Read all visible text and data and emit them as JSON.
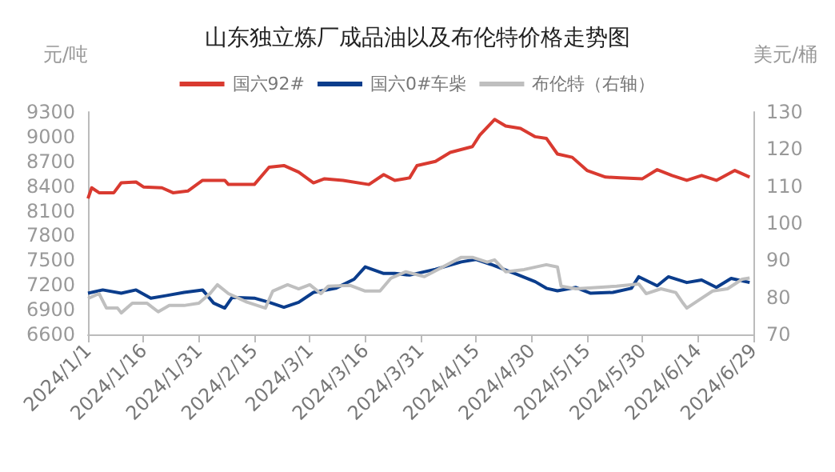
{
  "chart_data": {
    "type": "line",
    "title": "山东独立炼厂成品油以及布伦特价格走势图",
    "ylabel": "元/吨",
    "y2label": "美元/桶",
    "legend": "top",
    "grid": false,
    "marker": "none",
    "line_style": "solid",
    "xlim": [
      "2024-01-01",
      "2024-06-29"
    ],
    "xticks": [
      {
        "value": "2024-01-01",
        "label": "2024/1/1"
      },
      {
        "value": "2024-01-16",
        "label": "2024/1/16"
      },
      {
        "value": "2024-01-31",
        "label": "2024/1/31"
      },
      {
        "value": "2024-02-15",
        "label": "2024/2/15"
      },
      {
        "value": "2024-03-01",
        "label": "2024/3/1"
      },
      {
        "value": "2024-03-16",
        "label": "2024/3/16"
      },
      {
        "value": "2024-03-31",
        "label": "2024/3/31"
      },
      {
        "value": "2024-04-15",
        "label": "2024/4/15"
      },
      {
        "value": "2024-04-30",
        "label": "2024/4/30"
      },
      {
        "value": "2024-05-15",
        "label": "2024/5/15"
      },
      {
        "value": "2024-05-30",
        "label": "2024/5/30"
      },
      {
        "value": "2024-06-14",
        "label": "2024/6/14"
      },
      {
        "value": "2024-06-29",
        "label": "2024/6/29"
      }
    ],
    "ylim": [
      6600,
      9300
    ],
    "yticks": [
      6600,
      6900,
      7200,
      7500,
      7800,
      8100,
      8400,
      8700,
      9000,
      9300
    ],
    "y2lim": [
      70,
      130
    ],
    "y2ticks": [
      70,
      80,
      90,
      100,
      110,
      120,
      130
    ],
    "series": [
      {
        "name": "国六92#",
        "color": "#d93a30",
        "x": [
          "2024-01-01",
          "2024-01-02",
          "2024-01-04",
          "2024-01-08",
          "2024-01-10",
          "2024-01-14",
          "2024-01-16",
          "2024-01-21",
          "2024-01-24",
          "2024-01-28",
          "2024-02-01",
          "2024-02-07",
          "2024-02-08",
          "2024-02-15",
          "2024-02-19",
          "2024-02-23",
          "2024-02-27",
          "2024-03-02",
          "2024-03-05",
          "2024-03-10",
          "2024-03-17",
          "2024-03-21",
          "2024-03-24",
          "2024-03-28",
          "2024-03-30",
          "2024-04-04",
          "2024-04-08",
          "2024-04-14",
          "2024-04-16",
          "2024-04-20",
          "2024-04-23",
          "2024-04-27",
          "2024-05-01",
          "2024-05-04",
          "2024-05-07",
          "2024-05-11",
          "2024-05-15",
          "2024-05-20",
          "2024-05-24",
          "2024-05-30",
          "2024-06-03",
          "2024-06-07",
          "2024-06-11",
          "2024-06-15",
          "2024-06-19",
          "2024-06-24",
          "2024-06-28"
        ],
        "values": [
          8250,
          8380,
          8320,
          8320,
          8440,
          8450,
          8390,
          8380,
          8320,
          8340,
          8470,
          8470,
          8420,
          8420,
          8630,
          8650,
          8570,
          8440,
          8490,
          8470,
          8420,
          8540,
          8470,
          8500,
          8650,
          8700,
          8810,
          8880,
          9020,
          9210,
          9130,
          9100,
          9000,
          8980,
          8790,
          8750,
          8590,
          8510,
          8500,
          8490,
          8600,
          8530,
          8470,
          8530,
          8470,
          8590,
          8510
        ]
      },
      {
        "name": "国六0#车柴",
        "color": "#0b3d8c",
        "x": [
          "2024-01-01",
          "2024-01-05",
          "2024-01-10",
          "2024-01-14",
          "2024-01-18",
          "2024-01-22",
          "2024-01-27",
          "2024-02-01",
          "2024-02-04",
          "2024-02-07",
          "2024-02-09",
          "2024-02-15",
          "2024-02-19",
          "2024-02-23",
          "2024-02-27",
          "2024-03-02",
          "2024-03-08",
          "2024-03-13",
          "2024-03-16",
          "2024-03-21",
          "2024-03-24",
          "2024-03-28",
          "2024-04-04",
          "2024-04-11",
          "2024-04-15",
          "2024-04-19",
          "2024-04-26",
          "2024-05-01",
          "2024-05-04",
          "2024-05-07",
          "2024-05-12",
          "2024-05-16",
          "2024-05-22",
          "2024-05-27",
          "2024-05-29",
          "2024-06-03",
          "2024-06-06",
          "2024-06-11",
          "2024-06-15",
          "2024-06-19",
          "2024-06-23",
          "2024-06-28"
        ],
        "values": [
          7100,
          7140,
          7100,
          7140,
          7040,
          7070,
          7110,
          7140,
          6980,
          6920,
          7050,
          7040,
          6990,
          6930,
          6990,
          7110,
          7160,
          7270,
          7420,
          7340,
          7340,
          7320,
          7390,
          7480,
          7510,
          7450,
          7330,
          7240,
          7160,
          7130,
          7170,
          7100,
          7110,
          7160,
          7300,
          7190,
          7300,
          7230,
          7260,
          7170,
          7280,
          7230
        ]
      },
      {
        "name": "布伦特（右轴）",
        "color": "#bfbfbf",
        "axis": "y2",
        "x": [
          "2024-01-01",
          "2024-01-04",
          "2024-01-06",
          "2024-01-09",
          "2024-01-10",
          "2024-01-13",
          "2024-01-17",
          "2024-01-20",
          "2024-01-23",
          "2024-01-27",
          "2024-01-31",
          "2024-02-03",
          "2024-02-05",
          "2024-02-08",
          "2024-02-13",
          "2024-02-18",
          "2024-02-20",
          "2024-02-24",
          "2024-02-27",
          "2024-03-01",
          "2024-03-04",
          "2024-03-06",
          "2024-03-12",
          "2024-03-16",
          "2024-03-20",
          "2024-03-23",
          "2024-03-27",
          "2024-04-01",
          "2024-04-11",
          "2024-04-14",
          "2024-04-18",
          "2024-04-20",
          "2024-04-23",
          "2024-04-28",
          "2024-05-04",
          "2024-05-07",
          "2024-05-08",
          "2024-05-12",
          "2024-05-18",
          "2024-05-23",
          "2024-05-29",
          "2024-05-31",
          "2024-06-04",
          "2024-06-08",
          "2024-06-10",
          "2024-06-11",
          "2024-06-14",
          "2024-06-18",
          "2024-06-22",
          "2024-06-26",
          "2024-06-28"
        ],
        "values": [
          79.7,
          81.0,
          77.1,
          77.1,
          75.8,
          78.4,
          78.4,
          76.1,
          77.8,
          77.8,
          78.4,
          81.0,
          83.4,
          81.0,
          78.7,
          77.1,
          81.7,
          83.4,
          82.3,
          83.4,
          81.0,
          83.0,
          83.2,
          81.7,
          81.7,
          85.2,
          86.9,
          85.6,
          90.8,
          90.8,
          89.5,
          90.1,
          86.9,
          87.5,
          88.8,
          88.2,
          83.0,
          82.3,
          82.7,
          83.0,
          83.6,
          81.0,
          82.3,
          81.3,
          78.4,
          77.1,
          79.1,
          81.7,
          82.3,
          84.9,
          85.2
        ]
      }
    ]
  }
}
